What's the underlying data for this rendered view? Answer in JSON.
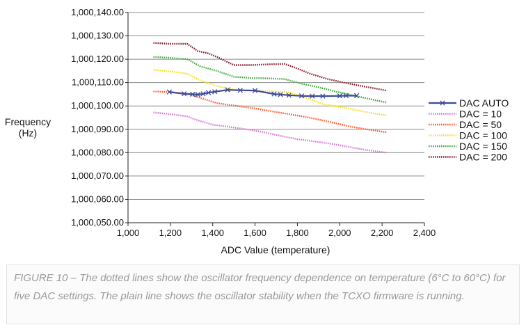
{
  "chart_data": {
    "type": "line",
    "title": "",
    "xlabel": "ADC Value (temperature)",
    "ylabel_lines": [
      "Frequency",
      "(Hz)"
    ],
    "xlim": [
      1000,
      2400
    ],
    "ylim": [
      1000050,
      1000140
    ],
    "x_ticks": [
      1000,
      1200,
      1400,
      1600,
      1800,
      2000,
      2200,
      2400
    ],
    "x_tick_labels": [
      "1,000",
      "1,200",
      "1,400",
      "1,600",
      "1,800",
      "2,000",
      "2,200",
      "2,400"
    ],
    "y_ticks": [
      1000050,
      1000060,
      1000070,
      1000080,
      1000090,
      1000100,
      1000110,
      1000120,
      1000130,
      1000140
    ],
    "y_tick_labels": [
      "1,000,050.00",
      "1,000,060.00",
      "1,000,070.00",
      "1,000,080.00",
      "1,000,090.00",
      "1,000,100.00",
      "1,000,110.00",
      "1,000,120.00",
      "1,000,130.00",
      "1,000,140.00"
    ],
    "grid": true,
    "legend_position": "right",
    "series": [
      {
        "name": "DAC AUTO",
        "color": "#3d4a9a",
        "style": "solid-marker",
        "x": [
          1195,
          1265,
          1305,
          1330,
          1355,
          1380,
          1410,
          1470,
          1530,
          1600,
          1690,
          1720,
          1760,
          1820,
          1870,
          1920,
          2000,
          2030,
          2080
        ],
        "y": [
          1000106.0,
          1000105.2,
          1000105.0,
          1000104.9,
          1000105.2,
          1000105.7,
          1000106.1,
          1000106.9,
          1000106.7,
          1000106.6,
          1000105.1,
          1000104.9,
          1000104.6,
          1000104.3,
          1000104.2,
          1000104.2,
          1000104.3,
          1000104.4,
          1000104.4
        ]
      },
      {
        "name": "DAC = 10",
        "color": "#d478d4",
        "style": "dotted",
        "x": [
          1120,
          1200,
          1280,
          1330,
          1400,
          1480,
          1560,
          1640,
          1720,
          1800,
          1880,
          1960,
          2040,
          2120,
          2220
        ],
        "y": [
          1000097.2,
          1000096.5,
          1000095.5,
          1000093.8,
          1000092.0,
          1000091.0,
          1000090.0,
          1000088.8,
          1000087.2,
          1000085.8,
          1000084.8,
          1000083.8,
          1000082.5,
          1000081.2,
          1000080.0
        ]
      },
      {
        "name": "DAC = 50",
        "color": "#ff5a2a",
        "style": "dotted",
        "x": [
          1120,
          1200,
          1280,
          1340,
          1420,
          1500,
          1580,
          1660,
          1740,
          1820,
          1900,
          1980,
          2060,
          2140,
          2220
        ],
        "y": [
          1000106.2,
          1000106.0,
          1000105.2,
          1000103.5,
          1000101.2,
          1000100.2,
          1000099.2,
          1000098.0,
          1000096.8,
          1000095.6,
          1000094.2,
          1000092.6,
          1000091.0,
          1000089.8,
          1000088.7
        ]
      },
      {
        "name": "DAC = 100",
        "color": "#f5e030",
        "style": "dotted",
        "x": [
          1120,
          1200,
          1280,
          1340,
          1420,
          1500,
          1600,
          1700,
          1760,
          1840,
          1920,
          2000,
          2080,
          2160,
          2220
        ],
        "y": [
          1000115.5,
          1000114.8,
          1000113.8,
          1000111.0,
          1000108.5,
          1000107.0,
          1000106.5,
          1000106.2,
          1000105.8,
          1000103.5,
          1000100.8,
          1000099.6,
          1000098.2,
          1000096.8,
          1000096.0
        ]
      },
      {
        "name": "DAC = 150",
        "color": "#3faa3f",
        "style": "dotted",
        "x": [
          1120,
          1200,
          1280,
          1340,
          1420,
          1500,
          1580,
          1660,
          1740,
          1820,
          1900,
          1980,
          2060,
          2140,
          2220
        ],
        "y": [
          1000121.0,
          1000120.6,
          1000120.0,
          1000117.0,
          1000115.0,
          1000112.5,
          1000112.0,
          1000111.8,
          1000111.5,
          1000109.5,
          1000108.0,
          1000106.2,
          1000104.6,
          1000103.0,
          1000101.5
        ]
      },
      {
        "name": "DAC = 200",
        "color": "#8b1a2e",
        "style": "dotted",
        "x": [
          1120,
          1200,
          1280,
          1330,
          1380,
          1420,
          1500,
          1580,
          1660,
          1740,
          1800,
          1860,
          1940,
          2020,
          2100,
          2160,
          2220
        ],
        "y": [
          1000127.0,
          1000126.6,
          1000126.6,
          1000123.5,
          1000122.5,
          1000121.0,
          1000117.5,
          1000117.5,
          1000117.8,
          1000118.0,
          1000116.0,
          1000113.8,
          1000111.6,
          1000110.0,
          1000108.6,
          1000107.6,
          1000106.6
        ]
      }
    ]
  },
  "caption": "FIGURE 10 – The dotted lines show the oscillator frequency dependence on temperature (6°C to 60°C) for five DAC settings. The plain line shows the oscillator stability when the TCXO firmware is running."
}
